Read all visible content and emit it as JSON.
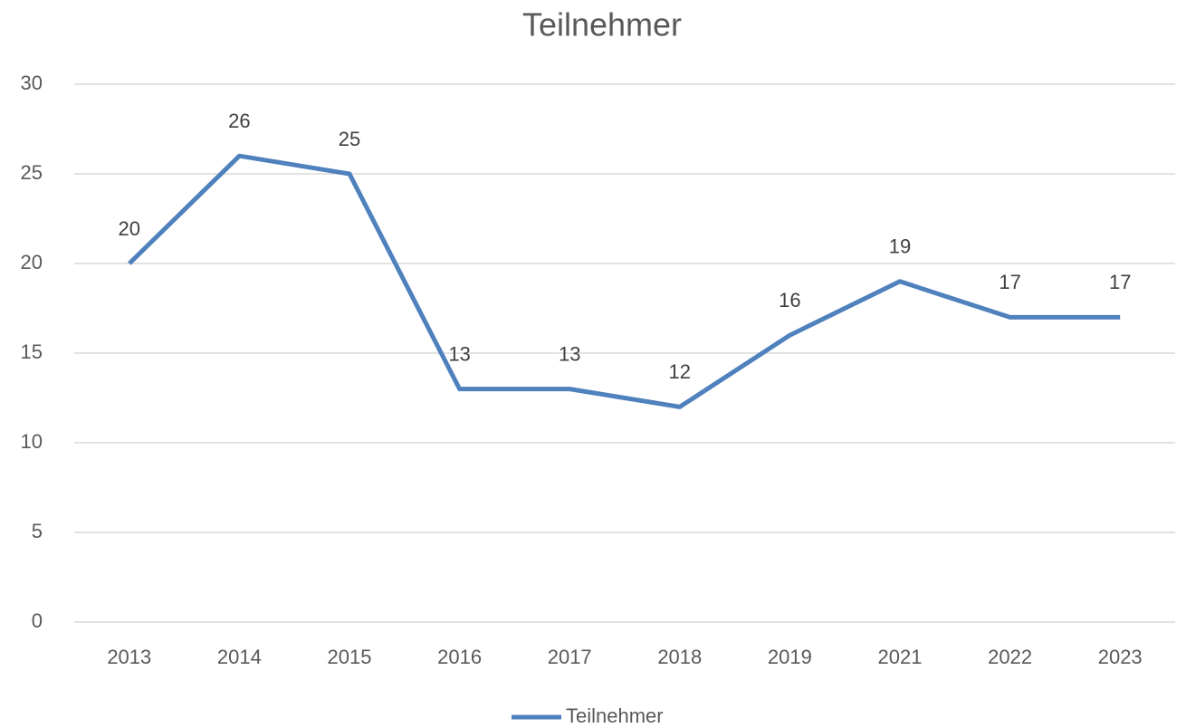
{
  "chart_data": {
    "type": "line",
    "title": "Teilnehmer",
    "categories": [
      "2013",
      "2014",
      "2015",
      "2016",
      "2017",
      "2018",
      "2019",
      "2021",
      "2022",
      "2023"
    ],
    "series": [
      {
        "name": "Teilnehmer",
        "color": "#4f81bd",
        "values": [
          20,
          26,
          25,
          13,
          13,
          12,
          16,
          19,
          17,
          17
        ]
      }
    ],
    "ylim": [
      0,
      30
    ],
    "yticks": [
      0,
      5,
      10,
      15,
      20,
      25,
      30
    ],
    "grid": true,
    "legend": "bottom"
  }
}
